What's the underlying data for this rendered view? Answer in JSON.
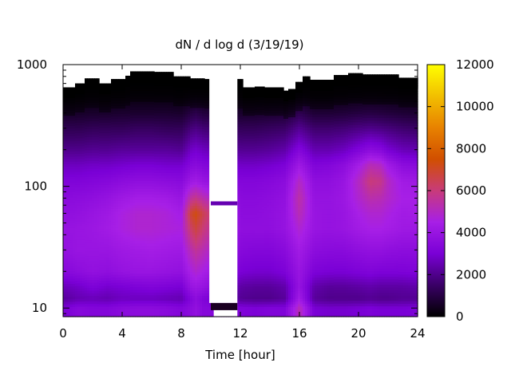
{
  "chart_data": {
    "type": "heatmap",
    "title": "dN / d log d (3/19/19)",
    "xlabel": "Time [hour]",
    "ylabel": "",
    "x_scale": "linear",
    "y_scale": "log",
    "xlim": [
      0,
      24
    ],
    "ylim": [
      8.5,
      1000
    ],
    "x_ticks": [
      0,
      4,
      8,
      12,
      16,
      20,
      24
    ],
    "x_tick_labels": [
      "0",
      "4",
      "8",
      "12",
      "16",
      "20",
      "24"
    ],
    "y_ticks": [
      10,
      100,
      1000
    ],
    "y_tick_labels": [
      "10",
      "100",
      "1000"
    ],
    "colorbar": {
      "range": [
        0,
        12000
      ],
      "ticks": [
        0,
        2000,
        4000,
        6000,
        8000,
        10000,
        12000
      ],
      "tick_labels": [
        "0",
        "2000",
        "4000",
        "6000",
        "8000",
        "10000",
        "12000"
      ],
      "colormap": "gnuplot",
      "color_stops": [
        "#000000",
        "#3a0066",
        "#7a00d6",
        "#a71fe6",
        "#c83b7a",
        "#d14f00",
        "#e88200",
        "#f2bf00",
        "#ffff00"
      ]
    },
    "grid": false,
    "legend": "colorbar-right",
    "no_data_color": "#ffffff",
    "gaps": [
      {
        "type": "band",
        "x_start": 9.9,
        "x_end": 11.8,
        "y_start": 11,
        "y_end": 1000
      },
      {
        "type": "band",
        "x_start": 10.2,
        "x_end": 11.8,
        "y_start": 8.5,
        "y_end": 11
      }
    ],
    "data_top_edge": {
      "x": [
        0,
        0.8,
        1.4,
        2.4,
        3.3,
        4.2,
        4.6,
        6.2,
        7.4,
        8.6,
        9.6,
        12.1,
        13.0,
        13.6,
        14.2,
        14.9,
        15.2,
        15.8,
        16.2,
        16.7,
        17.5,
        18.4,
        19.3,
        20.2,
        21.0,
        22.7,
        24.0
      ],
      "diameter_nm": [
        650,
        700,
        770,
        700,
        760,
        810,
        880,
        870,
        800,
        770,
        760,
        650,
        660,
        650,
        650,
        610,
        630,
        720,
        800,
        750,
        750,
        820,
        850,
        830,
        830,
        780,
        760
      ]
    },
    "series": [
      {
        "name": "",
        "x_hour": [
          0,
          1,
          2,
          3,
          4,
          5,
          6,
          7,
          8,
          8.7,
          9.0,
          9.5,
          12.1,
          13,
          14,
          15,
          16,
          17,
          18,
          19,
          20,
          20.8,
          21.5,
          22,
          23,
          24
        ],
        "diameter_nm": 10,
        "value": [
          3000,
          3400,
          3300,
          3300,
          3500,
          3600,
          3600,
          3500,
          3300,
          3600,
          3800,
          3400,
          3200,
          3100,
          3200,
          3200,
          5200,
          3000,
          2900,
          2900,
          3000,
          3100,
          3000,
          3000,
          3000,
          3100
        ]
      },
      {
        "name": "",
        "x_hour": [
          0,
          1,
          2,
          3,
          4,
          5,
          6,
          7,
          8,
          8.7,
          9.0,
          9.5,
          12.1,
          13,
          14,
          15,
          16,
          17,
          18,
          19,
          20,
          20.8,
          21.5,
          22,
          23,
          24
        ],
        "diameter_nm": 12,
        "value": [
          2200,
          2500,
          2600,
          2500,
          2700,
          2700,
          2700,
          2600,
          2500,
          3300,
          3600,
          3200,
          2100,
          2000,
          2000,
          2200,
          4300,
          2200,
          2000,
          2000,
          2000,
          2100,
          2000,
          2000,
          2100,
          2100
        ]
      },
      {
        "name": "",
        "x_hour": [
          0,
          1,
          2,
          3,
          4,
          5,
          6,
          7,
          8,
          8.7,
          9.0,
          9.5,
          12.1,
          13,
          14,
          15,
          16,
          17,
          18,
          19,
          20,
          20.8,
          21.5,
          22,
          23,
          24
        ],
        "diameter_nm": 15,
        "value": [
          2600,
          2800,
          3100,
          2900,
          3000,
          3100,
          3200,
          3100,
          3000,
          4000,
          4100,
          3900,
          2300,
          2200,
          2200,
          2400,
          3900,
          2400,
          2200,
          2200,
          2300,
          2400,
          2300,
          2300,
          2300,
          2400
        ]
      },
      {
        "name": "",
        "x_hour": [
          0,
          1,
          2,
          3,
          4,
          5,
          6,
          7,
          8,
          8.7,
          9.0,
          9.5,
          12.1,
          13,
          14,
          15,
          16,
          17,
          18,
          19,
          20,
          20.8,
          21.5,
          22,
          23,
          24
        ],
        "diameter_nm": 20,
        "value": [
          3400,
          3600,
          3800,
          3700,
          3900,
          4000,
          4000,
          3900,
          3800,
          4600,
          4800,
          4500,
          3000,
          2900,
          2900,
          3100,
          4000,
          3100,
          3000,
          3000,
          3100,
          3200,
          3100,
          3100,
          3100,
          3200
        ]
      },
      {
        "name": "",
        "x_hour": [
          0,
          1,
          2,
          3,
          4,
          5,
          6,
          7,
          8,
          8.7,
          9.0,
          9.5,
          12.1,
          13,
          14,
          15,
          16,
          17,
          18,
          19,
          20,
          20.8,
          21.5,
          22,
          23,
          24
        ],
        "diameter_nm": 30,
        "value": [
          3800,
          4000,
          4000,
          4000,
          4200,
          4300,
          4400,
          4300,
          4200,
          5300,
          5600,
          5200,
          3400,
          3300,
          3300,
          3500,
          4300,
          3600,
          3500,
          3500,
          3700,
          3800,
          3800,
          3700,
          3600,
          3600
        ]
      },
      {
        "name": "",
        "x_hour": [
          0,
          1,
          2,
          3,
          4,
          5,
          6,
          7,
          8,
          8.7,
          9.0,
          9.5,
          12.1,
          13,
          14,
          15,
          16,
          17,
          18,
          19,
          20,
          20.8,
          21.5,
          22,
          23,
          24
        ],
        "diameter_nm": 45,
        "value": [
          3900,
          4000,
          4100,
          4300,
          4600,
          4800,
          4800,
          4700,
          4600,
          6300,
          6700,
          6000,
          3700,
          3700,
          3700,
          3900,
          4800,
          4000,
          3900,
          4000,
          4300,
          4500,
          4500,
          4400,
          4200,
          4200
        ]
      },
      {
        "name": "",
        "x_hour": [
          0,
          1,
          2,
          3,
          4,
          5,
          6,
          7,
          8,
          8.7,
          9.0,
          9.5,
          12.1,
          13,
          14,
          15,
          16,
          17,
          18,
          19,
          20,
          20.8,
          21.5,
          22,
          23,
          24
        ],
        "diameter_nm": 60,
        "value": [
          3700,
          3800,
          4000,
          4200,
          4600,
          4800,
          4800,
          4700,
          4400,
          7000,
          7300,
          6500,
          3600,
          3600,
          3700,
          3900,
          5200,
          4000,
          3900,
          4000,
          4500,
          4800,
          4800,
          4600,
          4300,
          4400
        ]
      },
      {
        "name": "",
        "x_hour": [
          0,
          1,
          2,
          3,
          4,
          5,
          6,
          7,
          8,
          8.7,
          9.0,
          9.5,
          12.1,
          13,
          14,
          15,
          16,
          17,
          18,
          19,
          20,
          20.8,
          21.5,
          22,
          23,
          24
        ],
        "diameter_nm": 80,
        "value": [
          3500,
          3600,
          3700,
          3900,
          4200,
          4400,
          4400,
          4300,
          4000,
          5600,
          5800,
          5300,
          3500,
          3500,
          3600,
          3800,
          5400,
          3900,
          3900,
          4100,
          4800,
          5300,
          5200,
          4900,
          4500,
          4500
        ]
      },
      {
        "name": "",
        "x_hour": [
          0,
          1,
          2,
          3,
          4,
          5,
          6,
          7,
          8,
          8.7,
          9.0,
          9.5,
          12.1,
          13,
          14,
          15,
          16,
          17,
          18,
          19,
          20,
          20.8,
          21.5,
          22,
          23,
          24
        ],
        "diameter_nm": 110,
        "value": [
          3200,
          3200,
          3300,
          3400,
          3600,
          3700,
          3700,
          3600,
          3500,
          4200,
          4300,
          4000,
          3300,
          3300,
          3400,
          3600,
          5000,
          3700,
          3700,
          4000,
          5000,
          6000,
          5800,
          5000,
          4300,
          4200
        ]
      },
      {
        "name": "",
        "x_hour": [
          0,
          1,
          2,
          3,
          4,
          5,
          6,
          7,
          8,
          8.7,
          9.0,
          9.5,
          12.1,
          13,
          14,
          15,
          16,
          17,
          18,
          19,
          20,
          20.8,
          21.5,
          22,
          23,
          24
        ],
        "diameter_nm": 150,
        "value": [
          2700,
          2700,
          2800,
          2800,
          2900,
          3000,
          3000,
          2900,
          2900,
          3400,
          3500,
          3300,
          2800,
          2800,
          2900,
          3100,
          4200,
          3200,
          3300,
          3600,
          4400,
          5200,
          5000,
          4300,
          3600,
          3500
        ]
      },
      {
        "name": "",
        "x_hour": [
          0,
          1,
          2,
          3,
          4,
          5,
          6,
          7,
          8,
          8.7,
          9.0,
          9.5,
          12.1,
          13,
          14,
          15,
          16,
          17,
          18,
          19,
          20,
          20.8,
          21.5,
          22,
          23,
          24
        ],
        "diameter_nm": 200,
        "value": [
          2000,
          2000,
          2100,
          2100,
          2200,
          2200,
          2200,
          2200,
          2100,
          2800,
          2900,
          2700,
          2100,
          2100,
          2200,
          2400,
          3300,
          2500,
          2500,
          2700,
          3200,
          3600,
          3400,
          3000,
          2600,
          2500
        ]
      },
      {
        "name": "",
        "x_hour": [
          0,
          1,
          2,
          3,
          4,
          5,
          6,
          7,
          8,
          8.7,
          9.0,
          9.5,
          12.1,
          13,
          14,
          15,
          16,
          17,
          18,
          19,
          20,
          20.8,
          21.5,
          22,
          23,
          24
        ],
        "diameter_nm": 300,
        "value": [
          1200,
          1200,
          1300,
          1300,
          1300,
          1400,
          1400,
          1300,
          1300,
          1800,
          1900,
          1700,
          1300,
          1300,
          1400,
          1500,
          2100,
          1600,
          1600,
          1700,
          1900,
          2000,
          1900,
          1800,
          1600,
          1500
        ]
      },
      {
        "name": "",
        "x_hour": [
          0,
          1,
          2,
          3,
          4,
          5,
          6,
          7,
          8,
          8.7,
          9.0,
          9.5,
          12.1,
          13,
          14,
          15,
          16,
          17,
          18,
          19,
          20,
          20.8,
          21.5,
          22,
          23,
          24
        ],
        "diameter_nm": 400,
        "value": [
          600,
          600,
          650,
          650,
          700,
          700,
          700,
          700,
          650,
          1000,
          1100,
          900,
          650,
          650,
          700,
          750,
          1200,
          800,
          800,
          850,
          950,
          1000,
          950,
          900,
          800,
          750
        ]
      },
      {
        "name": "",
        "x_hour": [
          0,
          1,
          2,
          3,
          4,
          5,
          6,
          7,
          8,
          8.7,
          9.0,
          9.5,
          12.1,
          13,
          14,
          15,
          16,
          17,
          18,
          19,
          20,
          20.8,
          21.5,
          22,
          23,
          24
        ],
        "diameter_nm": 550,
        "value": [
          150,
          150,
          180,
          180,
          200,
          200,
          200,
          200,
          180,
          300,
          320,
          280,
          180,
          180,
          200,
          220,
          300,
          220,
          220,
          230,
          250,
          260,
          250,
          240,
          220,
          200
        ]
      },
      {
        "name": "",
        "x_hour": [
          0,
          1,
          2,
          3,
          4,
          5,
          6,
          7,
          8,
          8.7,
          9.0,
          9.5,
          12.1,
          13,
          14,
          15,
          16,
          17,
          18,
          19,
          20,
          20.8,
          21.5,
          22,
          23,
          24
        ],
        "diameter_nm": 700,
        "value": [
          20,
          20,
          30,
          30,
          40,
          40,
          40,
          40,
          30,
          60,
          60,
          50,
          30,
          30,
          40,
          40,
          60,
          40,
          40,
          40,
          50,
          50,
          50,
          40,
          40,
          40
        ]
      }
    ],
    "anomaly": {
      "x_hour_range": [
        10.0,
        11.8
      ],
      "diameter_nm": 73,
      "value": 2500
    }
  }
}
